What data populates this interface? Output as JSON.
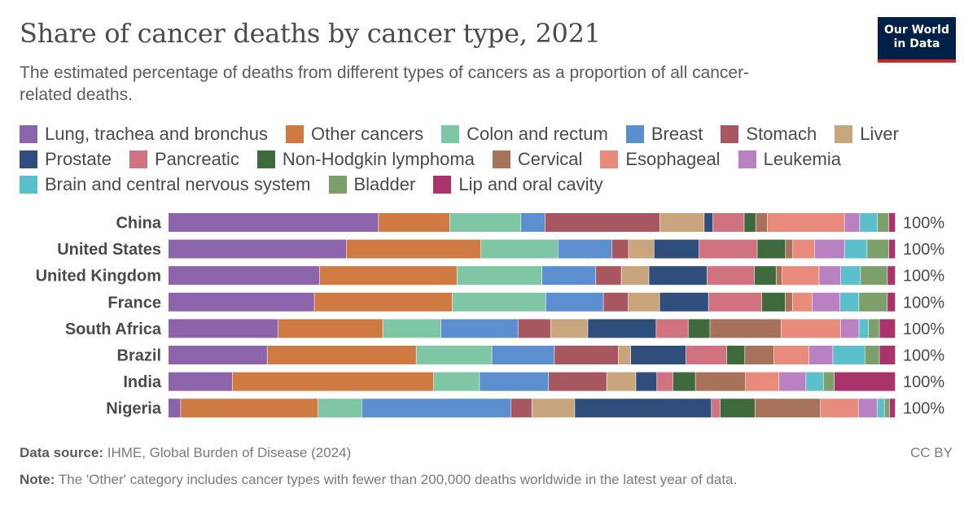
{
  "header": {
    "title": "Share of cancer deaths by cancer type, 2021",
    "subtitle": "The estimated percentage of deaths from different types of cancers as a proportion of all cancer-related deaths.",
    "logo_line1": "Our World",
    "logo_line2": "in Data"
  },
  "footer": {
    "source_label": "Data source:",
    "source_text": "IHME, Global Burden of Disease (2024)",
    "license": "CC BY",
    "note_label": "Note:",
    "note_text": "The 'Other' category includes cancer types with fewer than 200,000 deaths worldwide in the latest year of data."
  },
  "chart_data": {
    "type": "bar",
    "orientation": "horizontal",
    "stacked": true,
    "normalized": true,
    "unit": "%",
    "title": "Share of cancer deaths by cancer type, 2021",
    "categories": [
      "China",
      "United States",
      "United Kingdom",
      "France",
      "South Africa",
      "Brazil",
      "India",
      "Nigeria"
    ],
    "totals_label": "100%",
    "legend_position": "top",
    "series": [
      {
        "name": "Lung, trachea and bronchus",
        "color": "#8c64ab",
        "values": [
          28.9,
          24.5,
          20.8,
          20.0,
          15.1,
          13.6,
          8.8,
          1.7
        ]
      },
      {
        "name": "Other cancers",
        "color": "#d07a43",
        "values": [
          9.8,
          18.5,
          18.9,
          18.9,
          14.4,
          20.5,
          27.7,
          18.9
        ]
      },
      {
        "name": "Colon and rectum",
        "color": "#7fc6a4",
        "values": [
          9.8,
          10.6,
          11.7,
          12.8,
          8.0,
          10.4,
          6.3,
          6.0
        ]
      },
      {
        "name": "Breast",
        "color": "#5b8fcf",
        "values": [
          3.3,
          7.4,
          7.4,
          7.9,
          10.6,
          8.6,
          9.5,
          20.5
        ]
      },
      {
        "name": "Stomach",
        "color": "#a6575f",
        "values": [
          15.8,
          2.3,
          3.5,
          3.4,
          4.5,
          8.8,
          8.0,
          2.9
        ]
      },
      {
        "name": "Liver",
        "color": "#c9a57d",
        "values": [
          6.1,
          3.5,
          3.8,
          4.3,
          5.1,
          1.7,
          4.0,
          5.9
        ]
      },
      {
        "name": "Prostate",
        "color": "#2f4e7b",
        "values": [
          1.2,
          6.2,
          8.0,
          6.7,
          9.4,
          7.6,
          2.9,
          18.8
        ]
      },
      {
        "name": "Pancreatic",
        "color": "#d17281",
        "values": [
          4.3,
          8.0,
          6.5,
          7.3,
          4.4,
          5.6,
          2.2,
          1.2
        ]
      },
      {
        "name": "Non-Hodgkin lymphoma",
        "color": "#3e6a3d",
        "values": [
          1.6,
          3.9,
          3.0,
          3.2,
          3.0,
          2.5,
          3.1,
          4.8
        ]
      },
      {
        "name": "Cervical",
        "color": "#a8715a",
        "values": [
          1.6,
          1.0,
          0.8,
          1.0,
          9.8,
          4.0,
          6.9,
          9.0
        ]
      },
      {
        "name": "Esophageal",
        "color": "#e98b7c",
        "values": [
          10.6,
          3.0,
          5.1,
          2.7,
          8.2,
          4.8,
          4.6,
          5.2
        ]
      },
      {
        "name": "Leukemia",
        "color": "#b980c2",
        "values": [
          2.1,
          4.1,
          3.0,
          3.8,
          2.5,
          3.3,
          3.7,
          2.6
        ]
      },
      {
        "name": "Brain and central nervous system",
        "color": "#5bbfcc",
        "values": [
          2.4,
          3.1,
          2.7,
          2.6,
          1.3,
          4.4,
          2.4,
          1.0
        ]
      },
      {
        "name": "Bladder",
        "color": "#7d9f6a",
        "values": [
          1.6,
          3.0,
          3.7,
          3.9,
          1.5,
          2.0,
          1.5,
          0.7
        ]
      },
      {
        "name": "Lip and oral cavity",
        "color": "#a9346c",
        "values": [
          0.9,
          0.9,
          1.1,
          1.1,
          2.2,
          2.2,
          8.4,
          0.8
        ]
      }
    ]
  }
}
